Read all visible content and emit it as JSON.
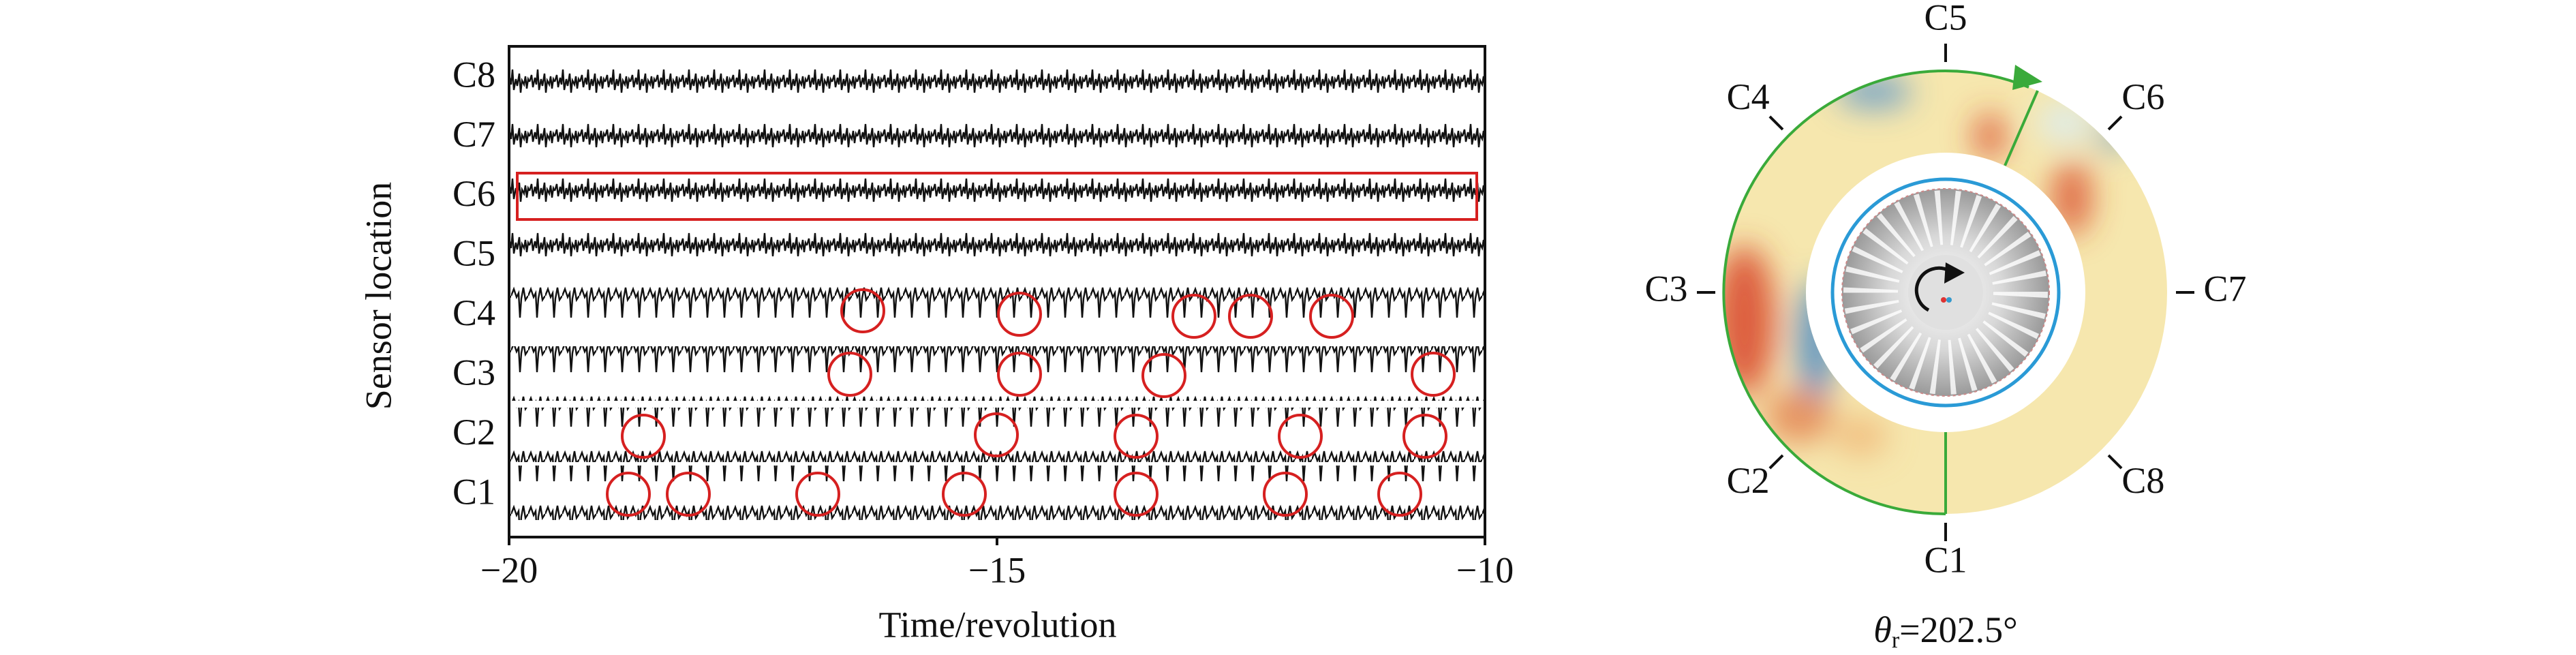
{
  "plot": {
    "sensors": [
      "C8",
      "C7",
      "C6",
      "C5",
      "C4",
      "C3",
      "C2",
      "C1"
    ],
    "ylabel": "Sensor location",
    "xlabel": "Time/revolution",
    "xlim": [
      -20,
      -10
    ],
    "xticks": [
      {
        "value": -20,
        "label": "−20"
      },
      {
        "value": -15,
        "label": "−15"
      },
      {
        "value": -10,
        "label": "−10"
      }
    ]
  },
  "annulus": {
    "labels": [
      "C1",
      "C2",
      "C3",
      "C4",
      "C5",
      "C6",
      "C7",
      "C8"
    ],
    "caption": {
      "symbol": "θ",
      "subscript": "r",
      "value": "=202.5°"
    }
  }
}
